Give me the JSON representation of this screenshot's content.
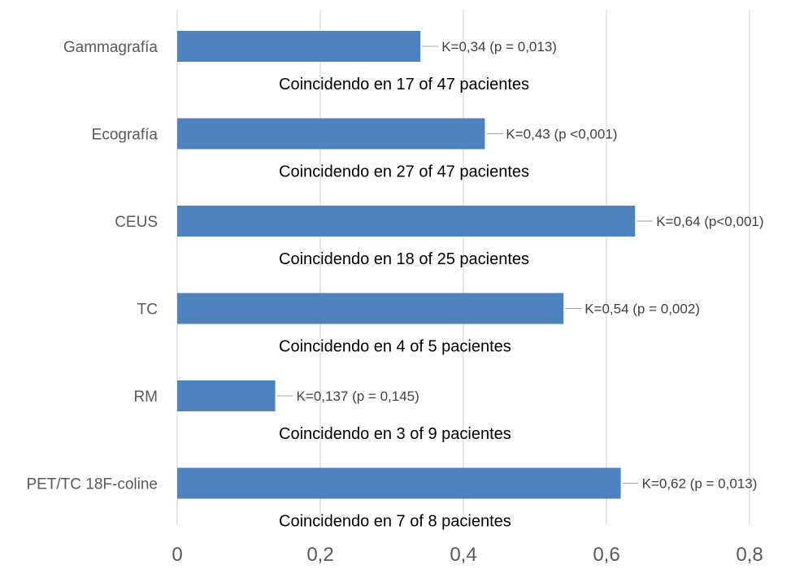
{
  "chart_data": {
    "type": "bar",
    "orientation": "horizontal",
    "categories": [
      "Gammagrafía",
      "Ecografía",
      "CEUS",
      "TC",
      "RM",
      "PET/TC 18F-coline"
    ],
    "values": [
      0.34,
      0.43,
      0.64,
      0.54,
      0.137,
      0.62
    ],
    "data_labels": [
      "K=0,34 (p = 0,013)",
      "K=0,43 (p <0,001)",
      "K=0,64 (p<0,001)",
      "K=0,54 (p = 0,002)",
      "K=0,137 (p = 0,145)",
      "K=0,62 (p = 0,013)"
    ],
    "annotations": [
      "Coincidendo en 17 of 47 pacientes",
      "Coincidendo en 27 of 47 pacientes",
      "Coincidendo en 18 of 25 pacientes",
      "Coincidendo en 4 of 5 pacientes",
      "Coincidendo en 3 of 9 pacientes",
      "Coincidendo en 7 of 8 pacientes"
    ],
    "xlim": [
      0,
      0.8
    ],
    "xticks": [
      0,
      0.2,
      0.4,
      0.6,
      0.8
    ],
    "xtick_labels": [
      "0",
      "0,2",
      "0,4",
      "0,6",
      "0,8"
    ],
    "grid": true,
    "legend": "none",
    "bar_color": "#4e81bd"
  }
}
